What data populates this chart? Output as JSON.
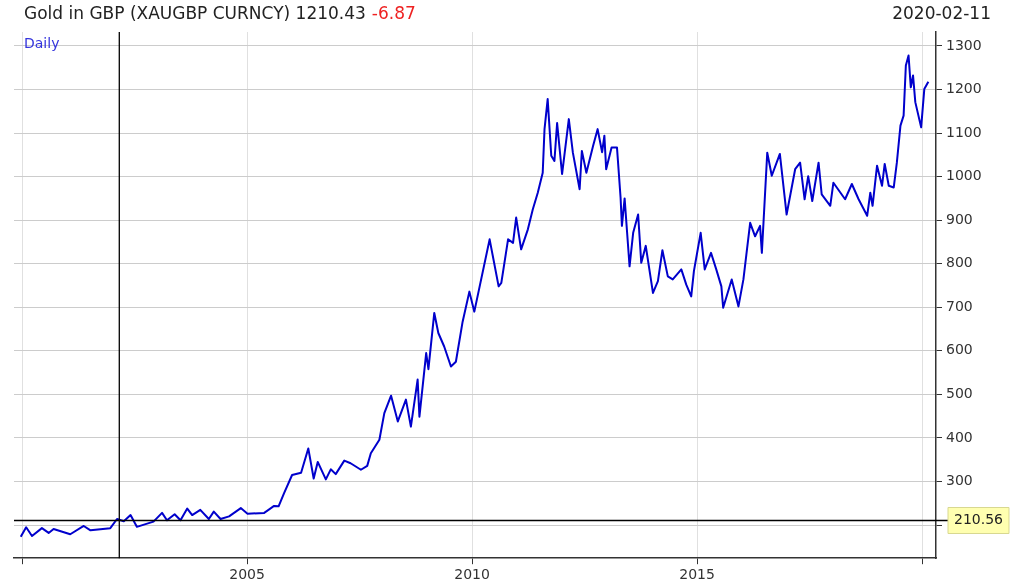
{
  "chart_data": {
    "type": "line",
    "title": "Gold in GBP (XAUGBP CURNCY) 1210.43",
    "subtitle": "-6.87",
    "annotations": [
      "2020-02-11",
      "Daily"
    ],
    "color": "#0000cc",
    "grid": true,
    "legend": false,
    "marker": "none",
    "line_style": "solid",
    "xlim": [
      1999.82,
      2020.31
    ],
    "xticks": [
      {
        "value": 2000,
        "label": null
      },
      2005,
      2010,
      2015,
      {
        "value": 2020,
        "label": null
      }
    ],
    "ylim": [
      124,
      1332
    ],
    "yticks": [
      {
        "value": 200,
        "label": null
      },
      300,
      400,
      500,
      600,
      700,
      800,
      900,
      1000,
      1100,
      1200,
      1300
    ],
    "ref_lines": [
      {
        "axis": "x",
        "value": 2002.16,
        "label": null,
        "color": "#000000"
      },
      {
        "axis": "y",
        "value": 210.56,
        "label": "210.56",
        "color": "#000000"
      }
    ],
    "x": [
      1999.97,
      2000.09,
      2000.22,
      2000.44,
      2000.59,
      2000.7,
      2001.07,
      2001.37,
      2001.52,
      2001.96,
      2002.11,
      2002.26,
      2002.41,
      2002.55,
      2002.92,
      2003.11,
      2003.22,
      2003.39,
      2003.52,
      2003.67,
      2003.78,
      2003.96,
      2004.15,
      2004.26,
      2004.41,
      2004.6,
      2004.86,
      2005.01,
      2005.38,
      2005.6,
      2005.7,
      2005.82,
      2006.0,
      2006.2,
      2006.36,
      2006.48,
      2006.57,
      2006.75,
      2006.86,
      2006.97,
      2007.16,
      2007.3,
      2007.53,
      2007.67,
      2007.75,
      2007.94,
      2008.05,
      2008.2,
      2008.35,
      2008.53,
      2008.64,
      2008.79,
      2008.83,
      2008.98,
      2009.03,
      2009.16,
      2009.25,
      2009.38,
      2009.53,
      2009.64,
      2009.79,
      2009.94,
      2010.05,
      2010.39,
      2010.59,
      2010.65,
      2010.8,
      2010.91,
      2010.98,
      2011.09,
      2011.24,
      2011.35,
      2011.46,
      2011.57,
      2011.61,
      2011.68,
      2011.76,
      2011.83,
      2011.89,
      2012.0,
      2012.15,
      2012.24,
      2012.39,
      2012.44,
      2012.54,
      2012.69,
      2012.79,
      2012.89,
      2012.94,
      2012.98,
      2013.1,
      2013.22,
      2013.3,
      2013.33,
      2013.39,
      2013.5,
      2013.58,
      2013.69,
      2013.76,
      2013.86,
      2014.02,
      2014.13,
      2014.23,
      2014.35,
      2014.46,
      2014.65,
      2014.76,
      2014.87,
      2014.93,
      2015.08,
      2015.17,
      2015.31,
      2015.43,
      2015.54,
      2015.58,
      2015.77,
      2015.92,
      2016.03,
      2016.18,
      2016.29,
      2016.4,
      2016.44,
      2016.56,
      2016.66,
      2016.84,
      2016.99,
      2017.18,
      2017.29,
      2017.39,
      2017.47,
      2017.56,
      2017.7,
      2017.77,
      2017.96,
      2018.03,
      2018.29,
      2018.44,
      2018.59,
      2018.78,
      2018.85,
      2018.9,
      2019.0,
      2019.11,
      2019.17,
      2019.26,
      2019.37,
      2019.44,
      2019.52,
      2019.59,
      2019.64,
      2019.7,
      2019.75,
      2019.8,
      2019.85,
      2019.98,
      2020.05,
      2020.14
    ],
    "values": [
      173,
      195,
      175,
      193,
      182,
      191,
      179,
      198,
      188,
      193,
      214,
      209,
      223,
      196,
      208,
      228,
      211,
      225,
      211,
      238,
      223,
      235,
      214,
      231,
      214,
      220,
      239,
      226,
      228,
      244,
      243,
      273,
      315,
      320,
      376,
      307,
      345,
      305,
      328,
      317,
      348,
      342,
      327,
      336,
      365,
      396,
      457,
      497,
      438,
      488,
      426,
      534,
      449,
      595,
      558,
      687,
      641,
      610,
      564,
      575,
      667,
      736,
      690,
      856,
      748,
      756,
      856,
      848,
      906,
      833,
      879,
      925,
      963,
      1009,
      1109,
      1178,
      1048,
      1036,
      1123,
      1006,
      1132,
      1055,
      971,
      1059,
      1009,
      1071,
      1109,
      1056,
      1094,
      1017,
      1067,
      1067,
      952,
      887,
      950,
      794,
      871,
      913,
      802,
      841,
      733,
      760,
      831,
      771,
      764,
      787,
      752,
      725,
      783,
      871,
      787,
      825,
      786,
      748,
      699,
      764,
      702,
      764,
      894,
      863,
      887,
      825,
      1055,
      1002,
      1052,
      913,
      1017,
      1032,
      948,
      1001,
      944,
      1032,
      959,
      933,
      986,
      948,
      983,
      948,
      910,
      963,
      933,
      1025,
      979,
      1029,
      979,
      975,
      1032,
      1117,
      1140,
      1255,
      1278,
      1205,
      1232,
      1171,
      1113,
      1201,
      1218
    ]
  }
}
